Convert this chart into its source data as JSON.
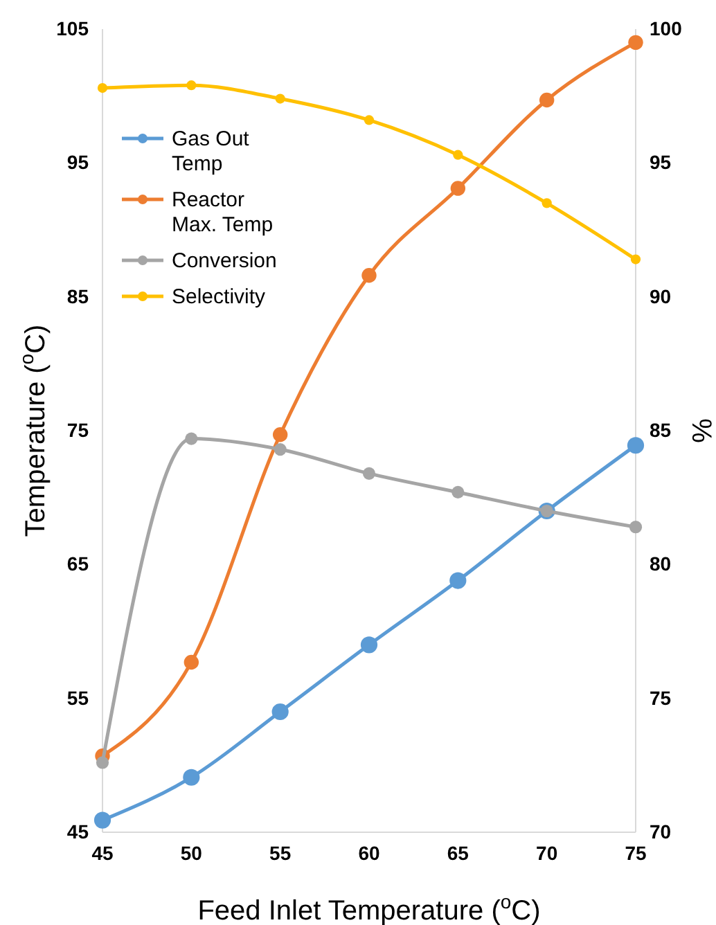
{
  "chart_data": {
    "type": "line",
    "xlabel": "Feed Inlet Temperature ($^{o}$C)",
    "ylabel": "Temperature ($^{o}$C)",
    "y2label": "%",
    "x": [
      45,
      50,
      55,
      60,
      65,
      70,
      75
    ],
    "xlim": [
      45,
      75
    ],
    "xticks": [
      45,
      50,
      55,
      60,
      65,
      70,
      75
    ],
    "ylim": [
      45,
      105
    ],
    "yticks": [
      45,
      55,
      65,
      75,
      85,
      95,
      105
    ],
    "y2lim": [
      70,
      100
    ],
    "y2ticks": [
      70,
      75,
      80,
      85,
      90,
      95,
      100
    ],
    "marker": "circle",
    "grid": false,
    "legend": "top left",
    "series": [
      {
        "name": "Gas Out Temp",
        "color": "#5b9bd5",
        "values": [
          45.9,
          49.1,
          54.0,
          59.0,
          63.8,
          69.0,
          73.9
        ]
      },
      {
        "name": "Reactor Max. Temp",
        "color": "#ed7d31",
        "values": [
          50.7,
          57.7,
          74.7,
          86.6,
          93.1,
          99.7,
          104
        ]
      },
      {
        "name": "Conversion",
        "color": "#a5a5a5",
        "axis": "y2",
        "values": [
          72.6,
          84.7,
          84.3,
          83.4,
          82.7,
          82.0,
          81.4
        ]
      },
      {
        "name": "Selectivity",
        "color": "#ffc000",
        "axis": "y2",
        "values": [
          97.8,
          97.9,
          97.4,
          96.6,
          95.3,
          93.5,
          91.4
        ]
      }
    ]
  }
}
